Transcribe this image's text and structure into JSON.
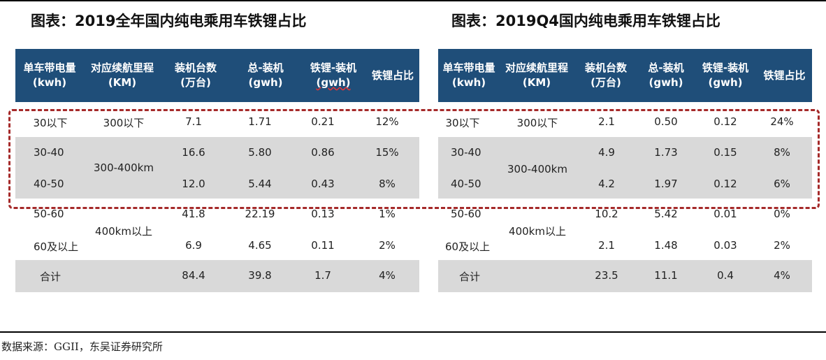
{
  "tables": [
    {
      "title": "图表：2019全年国内纯电乘用车铁锂占比",
      "headers": [
        {
          "line1": "单车带电量",
          "line2": "(kwh)"
        },
        {
          "line1": "对应续航里程",
          "line2": "(KM)"
        },
        {
          "line1": "装机台数",
          "line2": "(万台)"
        },
        {
          "line1": "总-装机",
          "line2": "(gwh)"
        },
        {
          "line1": "铁锂-装机",
          "line2": "(gwh)"
        },
        {
          "line1": "铁锂占比",
          "line2": ""
        }
      ],
      "rows": [
        {
          "capacity": "30以下",
          "units": "7.1",
          "total": "1.71",
          "lfp": "0.21",
          "share": "12%"
        },
        {
          "capacity": "30-40",
          "units": "16.6",
          "total": "5.80",
          "lfp": "0.86",
          "share": "15%"
        },
        {
          "capacity": "40-50",
          "units": "12.0",
          "total": "5.44",
          "lfp": "0.43",
          "share": "8%"
        },
        {
          "capacity": "50-60",
          "units": "41.8",
          "total": "22.19",
          "lfp": "0.13",
          "share": "1%"
        },
        {
          "capacity": "60及以上",
          "units": "6.9",
          "total": "4.65",
          "lfp": "0.11",
          "share": "2%"
        },
        {
          "capacity": "合计",
          "units": "84.4",
          "total": "39.8",
          "lfp": "1.7",
          "share": "4%"
        }
      ],
      "range_groups": [
        "300以下",
        "300-400km",
        "400km以上"
      ]
    },
    {
      "title": "图表：2019Q4国内纯电乘用车铁锂占比",
      "headers": [
        {
          "line1": "单车带电量",
          "line2": "(kwh)"
        },
        {
          "line1": "对应续航里程",
          "line2": "(KM)"
        },
        {
          "line1": "装机台数",
          "line2": "(万台)"
        },
        {
          "line1": "总-装机",
          "line2": "(gwh)"
        },
        {
          "line1": "铁锂-装机",
          "line2": "(gwh)"
        },
        {
          "line1": "铁锂占比",
          "line2": ""
        }
      ],
      "rows": [
        {
          "capacity": "30以下",
          "units": "2.1",
          "total": "0.50",
          "lfp": "0.12",
          "share": "24%"
        },
        {
          "capacity": "30-40",
          "units": "4.9",
          "total": "1.73",
          "lfp": "0.15",
          "share": "8%"
        },
        {
          "capacity": "40-50",
          "units": "4.2",
          "total": "1.97",
          "lfp": "0.12",
          "share": "6%"
        },
        {
          "capacity": "50-60",
          "units": "10.2",
          "total": "5.42",
          "lfp": "0.01",
          "share": "0%"
        },
        {
          "capacity": "60及以上",
          "units": "2.1",
          "total": "1.48",
          "lfp": "0.03",
          "share": "2%"
        },
        {
          "capacity": "合计",
          "units": "23.5",
          "total": "11.1",
          "lfp": "0.4",
          "share": "4%"
        }
      ],
      "range_groups": [
        "300以下",
        "300-400km",
        "400km以上"
      ]
    }
  ],
  "source": "数据来源：GGII，东吴证券研究所",
  "colors": {
    "header_bg": "#1f4e79",
    "row_gray": "#d9d9d9",
    "highlight_border": "#a52a2a"
  }
}
